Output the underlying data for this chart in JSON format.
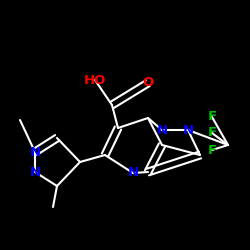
{
  "background_color": "#000000",
  "bond_color": "#ffffff",
  "figsize": [
    2.5,
    2.5
  ],
  "dpi": 100,
  "atom_colors": {
    "N": "#0000ff",
    "O": "#ff0000",
    "F": "#00bb00",
    "C": "#ffffff"
  }
}
